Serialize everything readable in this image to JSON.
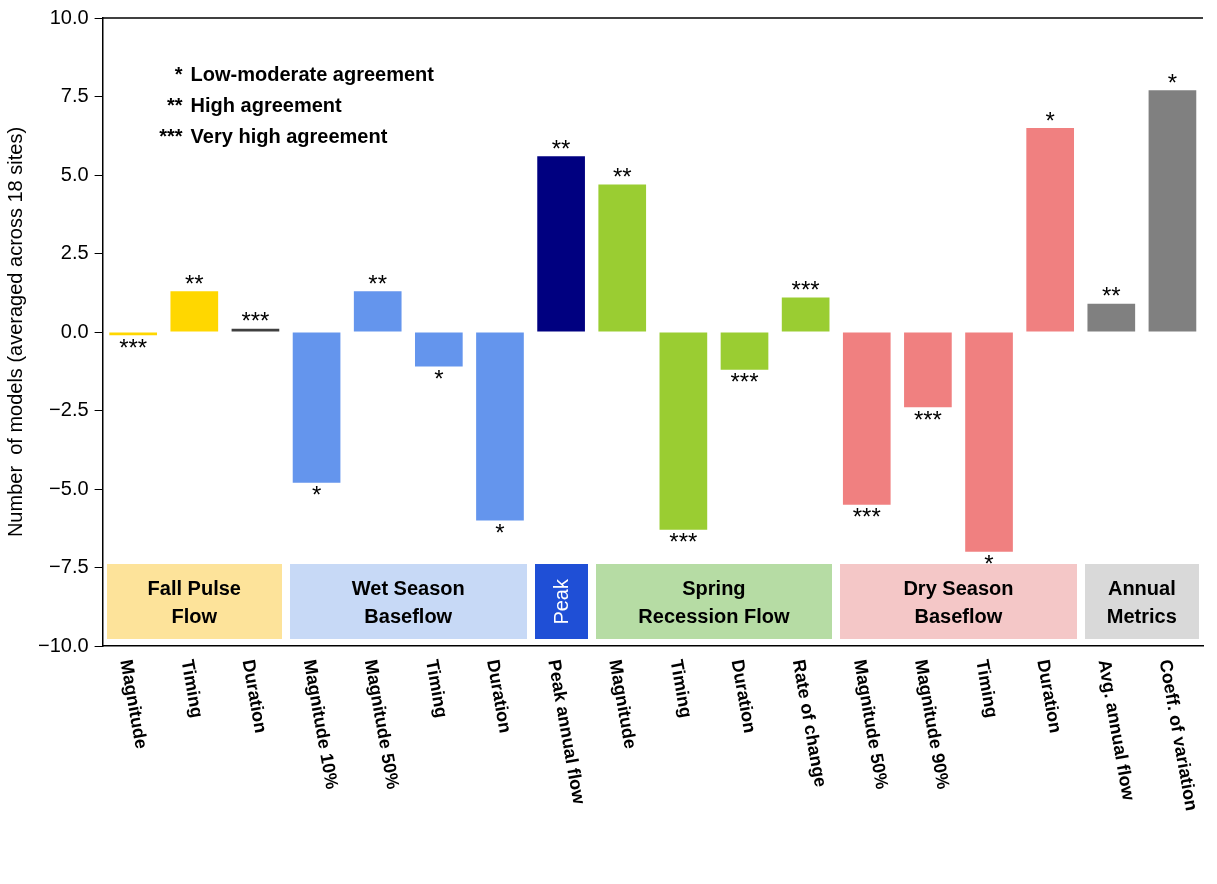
{
  "chart_data": {
    "type": "bar",
    "ylabel": "Number  of models (averaged across 18 sites)",
    "categories": [
      "Magnitude",
      "Timing",
      "Duration",
      "Magnitude 10%",
      "Magnitude 50%",
      "Timing",
      "Duration",
      "Peak annual flow",
      "Magnitude",
      "Timing",
      "Duration",
      "Rate of change",
      "Magnitude 50%",
      "Magnitude 90%",
      "Timing",
      "Duration",
      "Avg. annual flow",
      "Coeff. of variation"
    ],
    "values": [
      -0.1,
      1.3,
      0.1,
      -4.8,
      1.3,
      -1.1,
      -6.0,
      5.6,
      4.7,
      -6.3,
      -1.2,
      1.1,
      -5.5,
      -2.4,
      -7.0,
      6.5,
      0.9,
      7.7
    ],
    "colors": [
      "#ffd700",
      "#ffd700",
      "#404040",
      "#6495ed",
      "#6495ed",
      "#6495ed",
      "#6495ed",
      "#000080",
      "#9acd32",
      "#9acd32",
      "#9acd32",
      "#9acd32",
      "#f08080",
      "#f08080",
      "#f08080",
      "#f08080",
      "#808080",
      "#808080"
    ],
    "value_labels": [
      "***",
      "**",
      "***",
      "*",
      "**",
      "*",
      "*",
      "**",
      "**",
      "***",
      "***",
      "***",
      "***",
      "***",
      "*",
      "*",
      "**",
      "*"
    ],
    "ylim": [
      -10,
      10
    ],
    "yticks": [
      {
        "value": -10,
        "label": "−10.0"
      },
      {
        "value": -7.5,
        "label": "−7.5"
      },
      {
        "value": -5,
        "label": "−5.0"
      },
      {
        "value": -2.5,
        "label": "−2.5"
      },
      {
        "value": 0,
        "label": "0.0"
      },
      {
        "value": 2.5,
        "label": "2.5"
      },
      {
        "value": 5,
        "label": "5.0"
      },
      {
        "value": 7.5,
        "label": "7.5"
      },
      {
        "value": 10,
        "label": "10.0"
      }
    ],
    "grid": false,
    "annotations": [
      "* Low-moderate agreement",
      "** High agreement",
      "*** Very high agreement",
      "Fall Pulse\nFlow",
      "Wet Season\nBaseflow",
      "Peak",
      "Spring\nRecession Flow",
      "Dry Season\nBaseflow",
      "Annual\nMetrics"
    ]
  }
}
